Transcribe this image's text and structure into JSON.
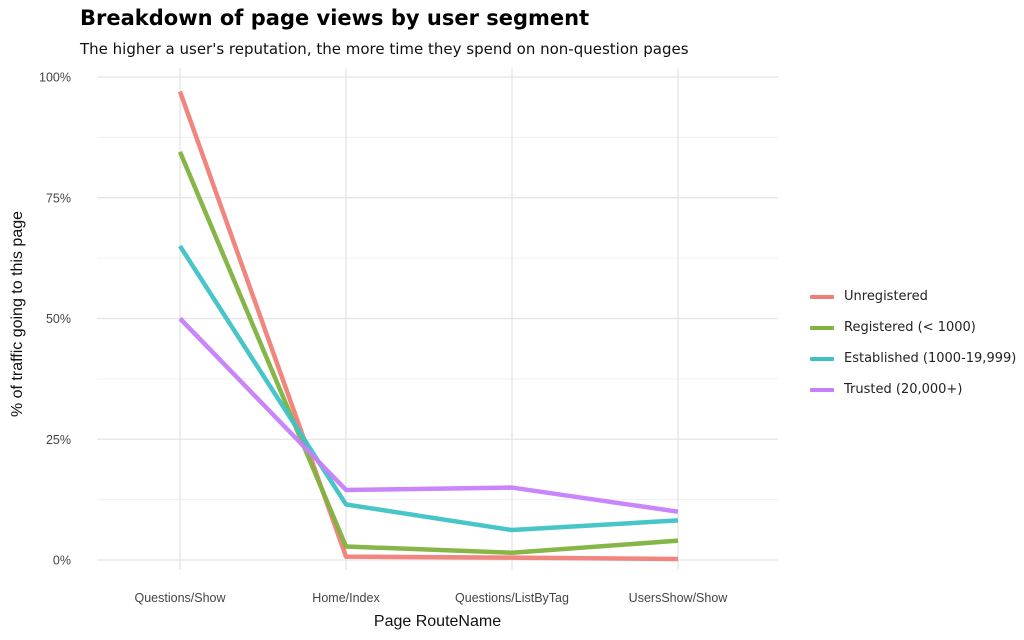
{
  "chart_data": {
    "type": "line",
    "title": "Breakdown of page views by user segment",
    "subtitle": "The higher a user's reputation, the more time they spend on non-question pages",
    "xlabel": "Page RouteName",
    "ylabel": "% of traffic going to this page",
    "categories": [
      "Questions/Show",
      "Home/Index",
      "Questions/ListByTag",
      "UsersShow/Show"
    ],
    "y_ticks": [
      0,
      25,
      50,
      75,
      100
    ],
    "y_tick_labels": [
      "0%",
      "25%",
      "50%",
      "75%",
      "100%"
    ],
    "ylim": [
      0,
      100
    ],
    "grid": true,
    "legend_position": "right",
    "series": [
      {
        "name": "Unregistered",
        "color": "#F07F78",
        "values": [
          97,
          0.7,
          0.5,
          0.2
        ]
      },
      {
        "name": "Registered (< 1000)",
        "color": "#80B23E",
        "values": [
          84.5,
          2.8,
          1.5,
          4
        ]
      },
      {
        "name": "Established (1000-19,999)",
        "color": "#3EC2C5",
        "values": [
          65,
          11.5,
          6.2,
          8.2
        ]
      },
      {
        "name": "Trusted (20,000+)",
        "color": "#C57FFA",
        "values": [
          50,
          14.5,
          15,
          10
        ]
      }
    ]
  }
}
